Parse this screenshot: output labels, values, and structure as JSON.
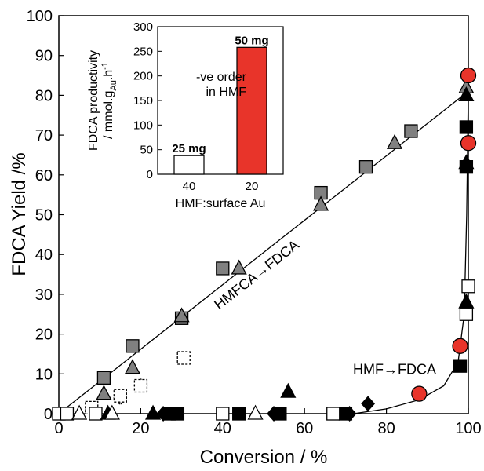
{
  "chart_data": [
    {
      "type": "scatter",
      "xlabel": "Conversion / %",
      "ylabel": "FDCA Yield  /%",
      "xlim": [
        0,
        100
      ],
      "ylim": [
        0,
        100
      ],
      "xticks": [
        0,
        20,
        40,
        60,
        80,
        100
      ],
      "yticks": [
        0,
        10,
        20,
        30,
        40,
        50,
        60,
        70,
        80,
        90,
        100
      ],
      "grid": false,
      "annotations": [
        {
          "text": "HMFCA→FDCA",
          "x": 49,
          "y": 34,
          "rotate": -38
        },
        {
          "text": "HMF→FDCA",
          "x": 82,
          "y": 10,
          "rotate": 0
        }
      ],
      "lines": [
        {
          "name": "",
          "style": "solid",
          "points": [
            [
              0,
              0
            ],
            [
              100,
              81
            ]
          ]
        },
        {
          "name": "",
          "style": "solid",
          "points": [
            [
              72,
              0
            ],
            [
              80,
              1.2
            ],
            [
              88,
              3.5
            ],
            [
              94,
              7
            ],
            [
              97.5,
              13
            ],
            [
              99,
              25
            ],
            [
              99.6,
              50
            ],
            [
              100,
              81
            ]
          ]
        }
      ],
      "series": [
        {
          "name": "",
          "marker": "square",
          "fill": "#808080",
          "points": [
            [
              11,
              9
            ],
            [
              18,
              17
            ],
            [
              30,
              24
            ],
            [
              40,
              36.5
            ],
            [
              64,
              55.5
            ],
            [
              75,
              62
            ],
            [
              86,
              71
            ]
          ]
        },
        {
          "name": "",
          "marker": "triangle",
          "fill": "#808080",
          "points": [
            [
              11,
              5
            ],
            [
              18,
              11.5
            ],
            [
              30,
              24.5
            ],
            [
              44,
              36.5
            ],
            [
              64,
              52.5
            ],
            [
              82,
              68
            ],
            [
              99.5,
              82
            ]
          ]
        },
        {
          "name": "",
          "marker": "diamond",
          "fill": "#c8c8c8",
          "points": [
            [
              8,
              1
            ],
            [
              15,
              4
            ],
            [
              20,
              7
            ]
          ]
        },
        {
          "name": "",
          "marker": "square-dashed",
          "fill": "#ffffff",
          "points": [
            [
              8,
              1.5
            ],
            [
              15,
              4.5
            ],
            [
              20,
              7
            ],
            [
              30.5,
              14
            ]
          ]
        },
        {
          "name": "",
          "marker": "circle",
          "fill": "#e8342a",
          "points": [
            [
              88,
              5
            ],
            [
              98,
              17
            ],
            [
              100,
              68
            ],
            [
              100,
              85
            ]
          ]
        },
        {
          "name": "",
          "marker": "square",
          "fill": "#000000",
          "points": [
            [
              27,
              0
            ],
            [
              29,
              0
            ],
            [
              44,
              0
            ],
            [
              54,
              0
            ],
            [
              70,
              0
            ],
            [
              98,
              12
            ],
            [
              99.5,
              62
            ],
            [
              99.5,
              72
            ]
          ]
        },
        {
          "name": "",
          "marker": "square",
          "fill": "#ffffff",
          "points": [
            [
              0,
              0
            ],
            [
              2,
              0
            ],
            [
              9,
              0
            ],
            [
              40,
              0
            ],
            [
              67,
              0
            ],
            [
              99.5,
              25
            ],
            [
              100,
              32
            ]
          ]
        },
        {
          "name": "",
          "marker": "triangle",
          "fill": "#000000",
          "points": [
            [
              12,
              0
            ],
            [
              23,
              0
            ],
            [
              56,
              5.5
            ],
            [
              99.5,
              28
            ],
            [
              99.5,
              63
            ],
            [
              99.5,
              80
            ]
          ]
        },
        {
          "name": "",
          "marker": "triangle",
          "fill": "#ffffff",
          "points": [
            [
              5,
              0
            ],
            [
              13,
              0
            ],
            [
              48,
              0
            ]
          ]
        },
        {
          "name": "",
          "marker": "diamond",
          "fill": "#000000",
          "points": [
            [
              25.5,
              0
            ],
            [
              52.5,
              0
            ],
            [
              71,
              0
            ],
            [
              75.5,
              2.5
            ]
          ]
        }
      ]
    },
    {
      "type": "bar",
      "categories": [
        "40",
        "20"
      ],
      "values": [
        38,
        258
      ],
      "bar_colors": [
        "#ffffff",
        "#e8342a"
      ],
      "bar_labels": [
        "25 mg",
        "50 mg"
      ],
      "xlabel": "HMF:surface Au",
      "ylabel_lines": [
        "FDCA productivity",
        "/ mmol.g",
        "Au",
        ".h",
        "-1"
      ],
      "ylim": [
        0,
        300
      ],
      "yticks": [
        0,
        50,
        100,
        150,
        200,
        250,
        300
      ],
      "annotation_lines": [
        "-ve order",
        "in HMF"
      ]
    }
  ]
}
